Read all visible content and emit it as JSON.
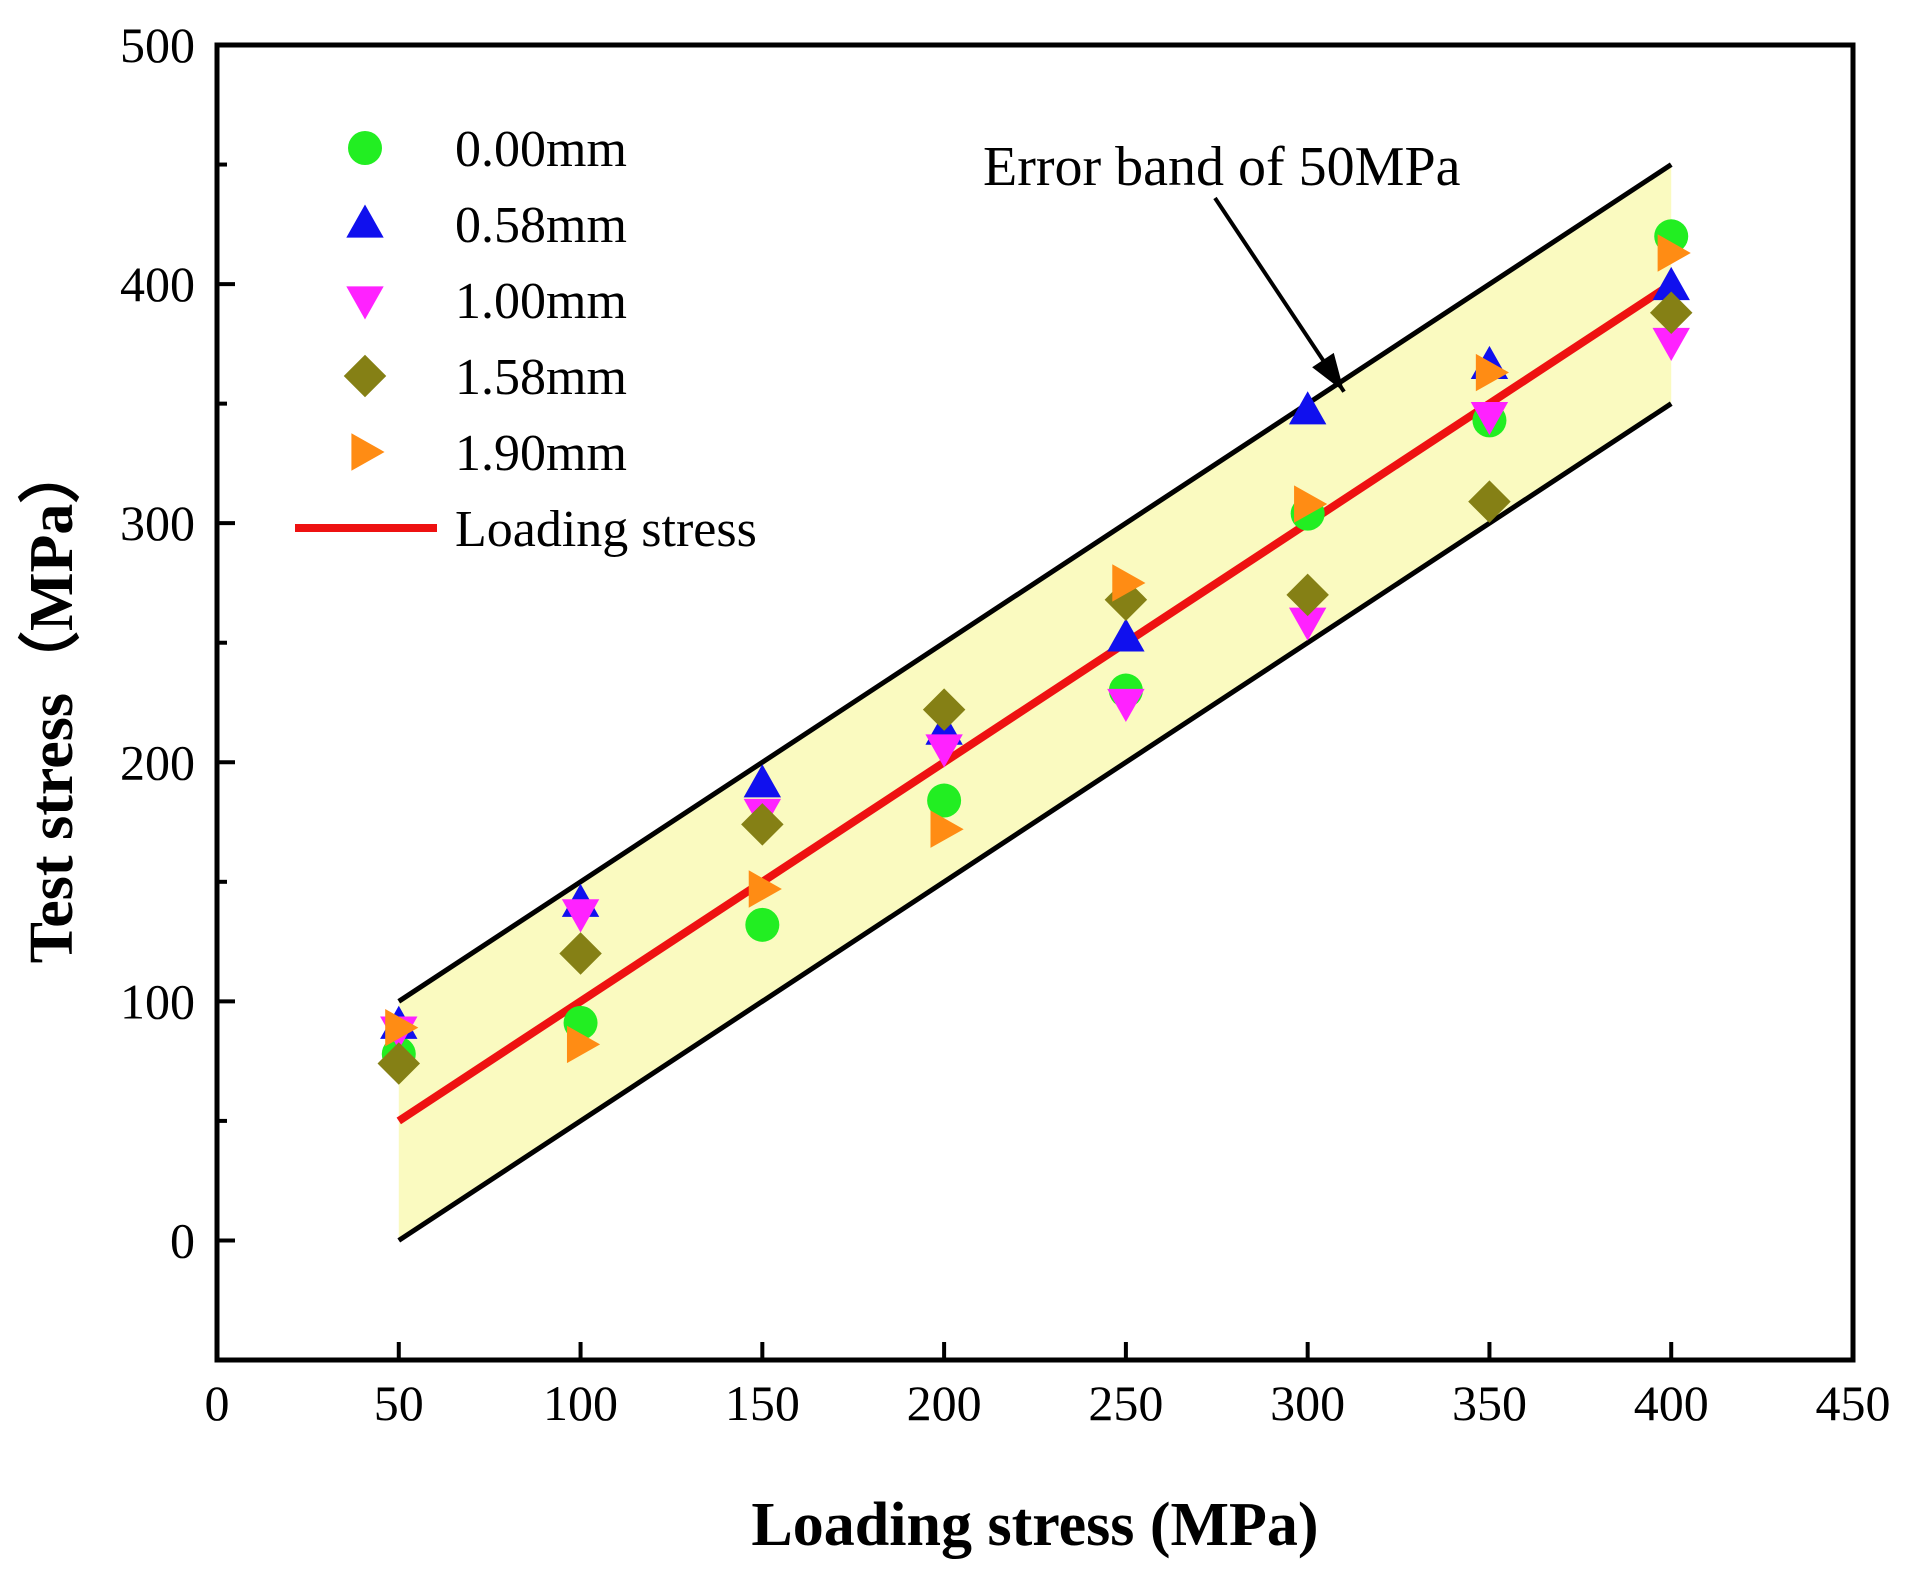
{
  "chart_data": {
    "type": "scatter",
    "title": "",
    "xlabel": "Loading stress (MPa)",
    "ylabel": "Test stress（MPa）",
    "xlim": [
      0,
      450
    ],
    "ylim": [
      -50,
      500
    ],
    "x_ticks": [
      0,
      50,
      100,
      150,
      200,
      250,
      300,
      350,
      400,
      450
    ],
    "y_ticks": [
      0,
      100,
      200,
      300,
      400,
      500
    ],
    "y_minor_ticks": [
      50,
      150,
      250,
      350,
      450
    ],
    "grid": false,
    "legend_position": "top-left",
    "series": [
      {
        "name": "0.00mm",
        "marker": "circle",
        "color": "#22ee22",
        "x": [
          50,
          100,
          150,
          200,
          250,
          300,
          350,
          400
        ],
        "y": [
          78,
          91,
          132,
          184,
          230,
          304,
          343,
          420
        ]
      },
      {
        "name": "0.58mm",
        "marker": "triangle-up",
        "color": "#1010ee",
        "x": [
          50,
          100,
          150,
          200,
          250,
          300,
          350,
          400
        ],
        "y": [
          90,
          141,
          191,
          213,
          252,
          347,
          366,
          399
        ]
      },
      {
        "name": "1.00mm",
        "marker": "triangle-down",
        "color": "#ff22ff",
        "x": [
          50,
          100,
          150,
          200,
          250,
          300,
          350,
          400
        ],
        "y": [
          88,
          137,
          179,
          206,
          225,
          259,
          345,
          376
        ]
      },
      {
        "name": "1.58mm",
        "marker": "diamond",
        "color": "#858015",
        "x": [
          50,
          100,
          150,
          200,
          250,
          300,
          350,
          400
        ],
        "y": [
          74,
          120,
          174,
          222,
          268,
          270,
          309,
          388
        ]
      },
      {
        "name": "1.90mm",
        "marker": "triangle-right",
        "color": "#ff8c14",
        "x": [
          50,
          100,
          150,
          200,
          250,
          300,
          350,
          400
        ],
        "y": [
          89,
          82,
          147,
          172,
          275,
          308,
          363,
          413
        ]
      }
    ],
    "loading_stress_line": {
      "name": "Loading stress",
      "color": "#ee1111",
      "x": [
        50,
        400
      ],
      "y": [
        50,
        400
      ]
    },
    "error_band": {
      "half_width": 50,
      "x": [
        50,
        400
      ],
      "fill": "#fafac0",
      "edge_color": "#000000"
    },
    "annotation": {
      "text": "Error band of 50MPa",
      "arrow_to": [
        310,
        355
      ]
    }
  }
}
